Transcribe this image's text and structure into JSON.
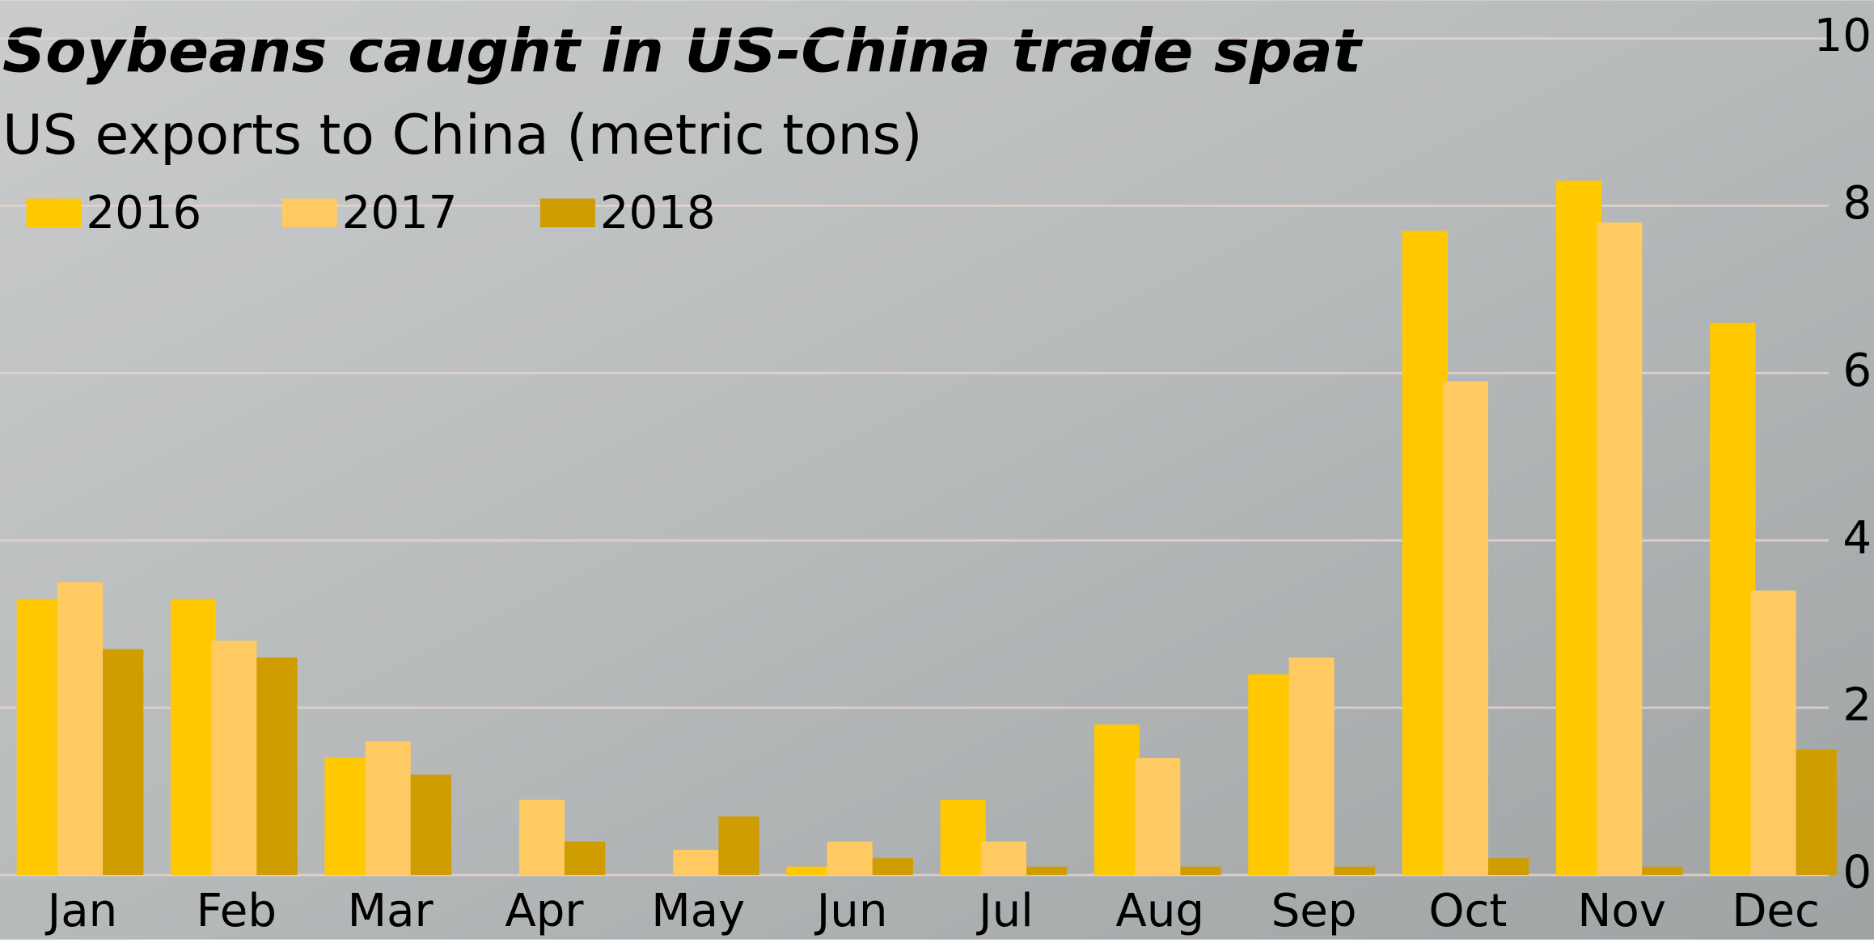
{
  "chart_data": {
    "type": "bar",
    "title": "Soybeans caught in US-China trade spat",
    "subtitle": "US exports to China (metric tons)",
    "categories": [
      "Jan",
      "Feb",
      "Mar",
      "Apr",
      "May",
      "Jun",
      "Jul",
      "Aug",
      "Sep",
      "Oct",
      "Nov",
      "Dec"
    ],
    "series": [
      {
        "name": "2016",
        "color": "#ffc800",
        "values": [
          3.3,
          3.3,
          1.4,
          0,
          0,
          0.1,
          0.9,
          1.8,
          2.4,
          7.7,
          8.3,
          6.6
        ]
      },
      {
        "name": "2017",
        "color": "#ffca62",
        "values": [
          3.5,
          2.8,
          1.6,
          0.9,
          0.3,
          0.4,
          0.4,
          1.4,
          2.6,
          5.9,
          7.8,
          3.4
        ]
      },
      {
        "name": "2018",
        "color": "#cf9d00",
        "values": [
          2.7,
          2.6,
          1.2,
          0.4,
          0.7,
          0.2,
          0.1,
          0.1,
          0.1,
          0.2,
          0.1,
          1.5
        ]
      }
    ],
    "ylim": [
      0,
      10
    ],
    "yticks": [
      0,
      2,
      4,
      6,
      8,
      10
    ],
    "grid": true,
    "legend": "top-left"
  }
}
